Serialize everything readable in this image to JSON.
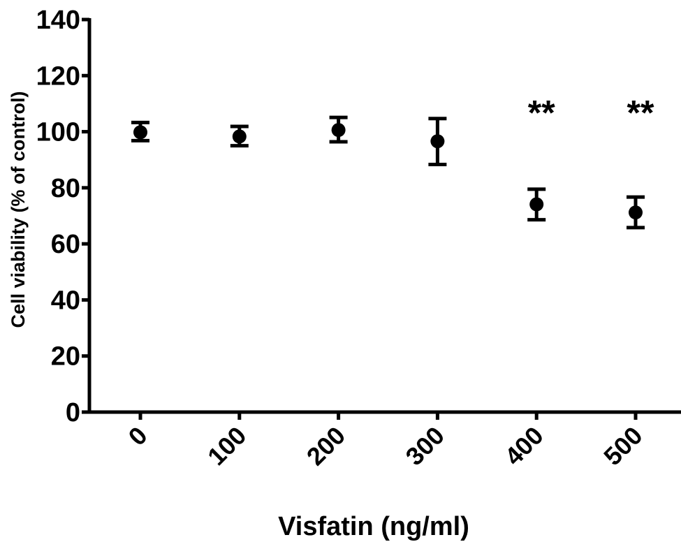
{
  "chart_data": {
    "type": "scatter",
    "title": "",
    "xlabel": "Visfatin (ng/ml)",
    "ylabel": "Cell viability (% of control)",
    "categories": [
      "0",
      "100",
      "200",
      "300",
      "400",
      "500"
    ],
    "series": [
      {
        "values": [
          99.8,
          98.3,
          100.6,
          96.6,
          74.1,
          71.2
        ],
        "error_upper": [
          103.3,
          101.9,
          105.1,
          104.7,
          79.5,
          76.7
        ],
        "error_lower": [
          96.8,
          95.0,
          96.4,
          88.3,
          68.6,
          65.8
        ],
        "marker": "circle",
        "color": "#000000"
      }
    ],
    "annotations": [
      {
        "category": "400",
        "text": "**",
        "y": 110
      },
      {
        "category": "500",
        "text": "**",
        "y": 110
      }
    ],
    "ylim": [
      0,
      140
    ],
    "yticks": [
      "0",
      "20",
      "40",
      "60",
      "80",
      "100",
      "120",
      "140"
    ],
    "grid": false,
    "legend": "none"
  }
}
